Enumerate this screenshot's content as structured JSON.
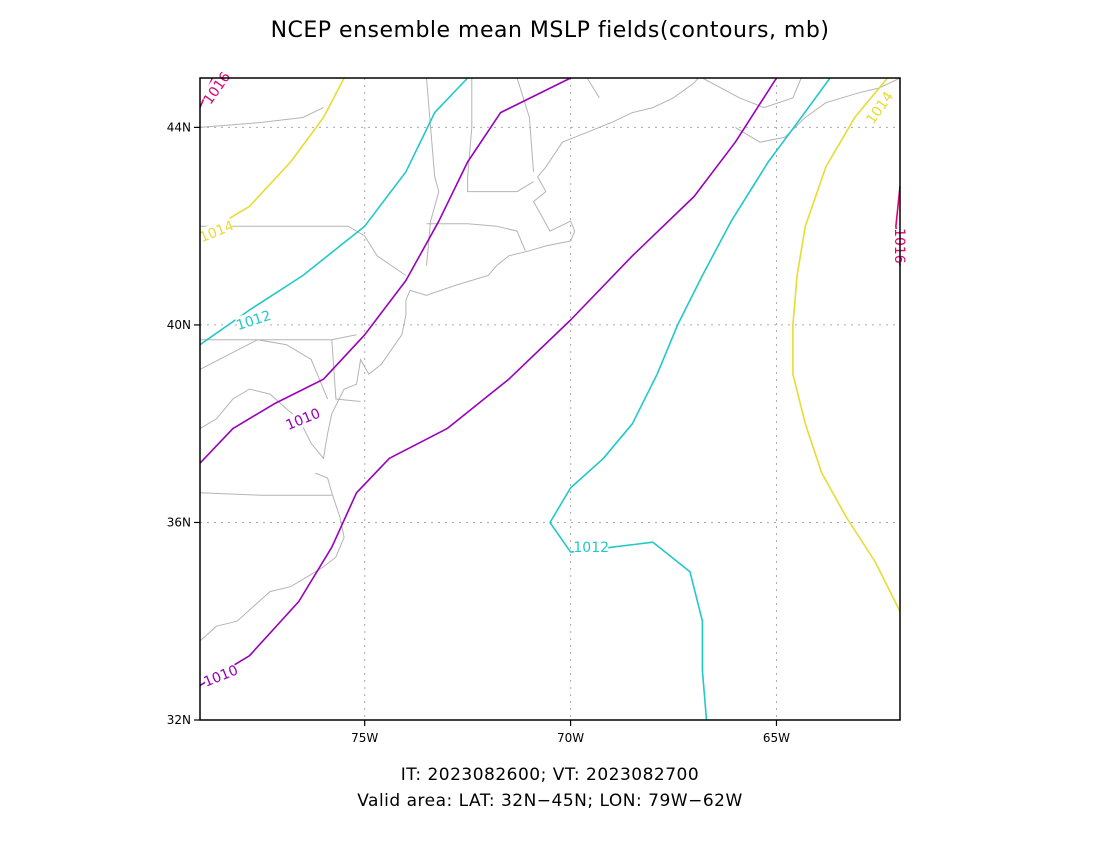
{
  "title": "NCEP ensemble mean MSLP fields(contours, mb)",
  "footer": {
    "line1": "IT: 2023082600; VT: 2023082700",
    "line2": "Valid area: LAT: 32N−45N; LON: 79W−62W"
  },
  "map": {
    "lat_range": [
      32,
      45
    ],
    "lon_range": [
      -79,
      -62
    ],
    "gridlines": "dotted",
    "lat_ticks": [
      {
        "lat": 32,
        "label": "32N"
      },
      {
        "lat": 36,
        "label": "36N"
      },
      {
        "lat": 40,
        "label": "40N"
      },
      {
        "lat": 44,
        "label": "44N"
      }
    ],
    "lon_ticks": [
      {
        "lon": -75,
        "label": "75W"
      },
      {
        "lon": -70,
        "label": "70W"
      },
      {
        "lon": -65,
        "label": "65W"
      }
    ],
    "colors": {
      "c1010": "#9900bb",
      "c1012": "#22c8c8",
      "c1014": "#e6dc32",
      "c1016": "#dd0077",
      "coast": "#b4b4b4",
      "grid": "#aaaaaa"
    }
  },
  "contours": [
    {
      "value": "1010",
      "color": "#9900bb",
      "points": [
        [
          -79,
          37.2
        ],
        [
          -78.2,
          37.9
        ],
        [
          -77.2,
          38.4
        ],
        [
          -76.0,
          38.9
        ],
        [
          -75.0,
          39.8
        ],
        [
          -74.0,
          40.9
        ],
        [
          -73.2,
          42.1
        ],
        [
          -72.5,
          43.3
        ],
        [
          -71.7,
          44.3
        ],
        [
          -70.0,
          45.0
        ]
      ]
    },
    {
      "value": "1010",
      "color": "#9900bb",
      "points": [
        [
          -79,
          32.7
        ],
        [
          -77.8,
          33.3
        ],
        [
          -76.6,
          34.4
        ],
        [
          -75.8,
          35.5
        ],
        [
          -75.2,
          36.6
        ],
        [
          -74.4,
          37.3
        ],
        [
          -73.0,
          37.9
        ],
        [
          -71.5,
          38.9
        ],
        [
          -70.0,
          40.1
        ],
        [
          -68.5,
          41.4
        ],
        [
          -67.0,
          42.6
        ],
        [
          -66.0,
          43.7
        ],
        [
          -65.0,
          45.0
        ]
      ]
    },
    {
      "value": "1012",
      "color": "#22c8c8",
      "points": [
        [
          -79,
          39.6
        ],
        [
          -77.8,
          40.3
        ],
        [
          -76.5,
          41.0
        ],
        [
          -75.0,
          42.0
        ],
        [
          -74.0,
          43.1
        ],
        [
          -73.3,
          44.3
        ],
        [
          -72.5,
          45.0
        ]
      ]
    },
    {
      "value": "1012",
      "color": "#22c8c8",
      "points": [
        [
          -66.7,
          32.0
        ],
        [
          -66.8,
          33.0
        ],
        [
          -66.8,
          34.0
        ],
        [
          -67.1,
          35.0
        ],
        [
          -68.0,
          35.6
        ],
        [
          -69.0,
          35.5
        ],
        [
          -70.0,
          35.4
        ],
        [
          -70.5,
          36.0
        ],
        [
          -70.0,
          36.7
        ],
        [
          -69.2,
          37.3
        ],
        [
          -68.5,
          38.0
        ],
        [
          -67.9,
          39.0
        ],
        [
          -67.4,
          40.0
        ],
        [
          -66.8,
          41.0
        ],
        [
          -66.1,
          42.1
        ],
        [
          -65.2,
          43.3
        ],
        [
          -64.4,
          44.2
        ],
        [
          -63.7,
          45.0
        ]
      ]
    },
    {
      "value": "1014",
      "color": "#e6dc32",
      "points": [
        [
          -79,
          41.8
        ],
        [
          -77.8,
          42.4
        ],
        [
          -76.8,
          43.3
        ],
        [
          -76.0,
          44.2
        ],
        [
          -75.5,
          45.0
        ]
      ]
    },
    {
      "value": "1014",
      "color": "#e6dc32",
      "points": [
        [
          -62.0,
          34.2
        ],
        [
          -62.6,
          35.2
        ],
        [
          -63.3,
          36.1
        ],
        [
          -63.9,
          37.0
        ],
        [
          -64.3,
          38.0
        ],
        [
          -64.6,
          39.0
        ],
        [
          -64.6,
          40.0
        ],
        [
          -64.5,
          41.0
        ],
        [
          -64.3,
          42.0
        ],
        [
          -63.8,
          43.2
        ],
        [
          -63.1,
          44.2
        ],
        [
          -62.3,
          45.0
        ]
      ]
    },
    {
      "value": "1016",
      "color": "#dd0077",
      "points": [
        [
          -79.0,
          44.4
        ],
        [
          -78.7,
          45.0
        ]
      ]
    },
    {
      "value": "1016",
      "color": "#dd0077",
      "points": [
        [
          -62.0,
          42.8
        ],
        [
          -62.1,
          42.0
        ],
        [
          -62.0,
          41.2
        ]
      ]
    }
  ],
  "contour_labels": [
    {
      "text": "1010",
      "color": "#9900bb",
      "lon": -76.5,
      "lat": 38.1,
      "angle": -22
    },
    {
      "text": "1010",
      "color": "#9900bb",
      "lon": -78.5,
      "lat": 32.9,
      "angle": -22
    },
    {
      "text": "1012",
      "color": "#22c8c8",
      "lon": -77.7,
      "lat": 40.1,
      "angle": -18
    },
    {
      "text": "1012",
      "color": "#22c8c8",
      "lon": -69.5,
      "lat": 35.5,
      "angle": 0
    },
    {
      "text": "1014",
      "color": "#e6dc32",
      "lon": -78.6,
      "lat": 41.9,
      "angle": -22
    },
    {
      "text": "1014",
      "color": "#e6dc32",
      "lon": -62.5,
      "lat": 44.4,
      "angle": -55
    },
    {
      "text": "1016",
      "color": "#dd0077",
      "lon": -78.6,
      "lat": 44.8,
      "angle": -55
    },
    {
      "text": "1016",
      "color": "#dd0077",
      "lon": -62.0,
      "lat": 41.6,
      "angle": 90
    }
  ],
  "coastlines": [
    [
      [
        -79.0,
        37.9
      ],
      [
        -78.6,
        38.1
      ],
      [
        -78.2,
        38.5
      ],
      [
        -77.8,
        38.7
      ],
      [
        -77.3,
        38.6
      ],
      [
        -76.9,
        38.3
      ],
      [
        -76.6,
        38.1
      ],
      [
        -76.3,
        37.6
      ],
      [
        -76.0,
        37.3
      ],
      [
        -75.9,
        37.8
      ],
      [
        -75.8,
        38.2
      ],
      [
        -75.5,
        38.7
      ],
      [
        -75.2,
        38.8
      ],
      [
        -75.1,
        39.3
      ],
      [
        -74.9,
        39.0
      ],
      [
        -74.6,
        39.2
      ],
      [
        -74.1,
        39.8
      ],
      [
        -74.0,
        40.2
      ],
      [
        -74.0,
        40.5
      ],
      [
        -73.9,
        40.7
      ],
      [
        -73.5,
        40.6
      ],
      [
        -72.8,
        40.8
      ],
      [
        -72.0,
        41.0
      ],
      [
        -71.8,
        41.2
      ],
      [
        -71.5,
        41.4
      ],
      [
        -71.0,
        41.5
      ],
      [
        -70.6,
        41.6
      ],
      [
        -70.0,
        41.7
      ],
      [
        -69.9,
        41.9
      ],
      [
        -70.0,
        42.1
      ],
      [
        -70.5,
        41.9
      ],
      [
        -70.7,
        42.2
      ],
      [
        -70.9,
        42.5
      ],
      [
        -70.6,
        42.7
      ],
      [
        -70.8,
        43.0
      ],
      [
        -70.6,
        43.2
      ],
      [
        -70.2,
        43.7
      ],
      [
        -69.6,
        43.9
      ],
      [
        -69.0,
        44.1
      ],
      [
        -68.5,
        44.3
      ],
      [
        -68.0,
        44.4
      ],
      [
        -67.5,
        44.6
      ],
      [
        -67.0,
        44.9
      ],
      [
        -66.9,
        45.0
      ]
    ],
    [
      [
        -79.0,
        33.6
      ],
      [
        -78.6,
        33.9
      ],
      [
        -78.1,
        34.0
      ],
      [
        -77.7,
        34.3
      ],
      [
        -77.3,
        34.6
      ],
      [
        -76.8,
        34.7
      ],
      [
        -76.4,
        34.9
      ],
      [
        -76.0,
        35.1
      ],
      [
        -75.7,
        35.3
      ],
      [
        -75.5,
        35.7
      ],
      [
        -75.6,
        36.1
      ],
      [
        -75.8,
        36.6
      ],
      [
        -75.9,
        36.9
      ],
      [
        -76.2,
        37.0
      ]
    ],
    [
      [
        -79.0,
        39.1
      ],
      [
        -78.3,
        39.4
      ],
      [
        -77.6,
        39.7
      ],
      [
        -76.9,
        39.6
      ],
      [
        -76.3,
        39.3
      ],
      [
        -76.1,
        38.9
      ],
      [
        -75.9,
        38.5
      ]
    ],
    [
      [
        -66.8,
        45.0
      ],
      [
        -65.9,
        44.6
      ],
      [
        -65.3,
        44.4
      ],
      [
        -64.6,
        44.6
      ],
      [
        -64.4,
        45.0
      ]
    ],
    [
      [
        -66.0,
        44.0
      ],
      [
        -65.4,
        43.7
      ],
      [
        -64.8,
        43.8
      ],
      [
        -64.3,
        44.2
      ],
      [
        -63.8,
        44.5
      ],
      [
        -63.0,
        44.7
      ],
      [
        -62.5,
        44.8
      ],
      [
        -62.0,
        45.0
      ]
    ]
  ],
  "borders": [
    [
      [
        -79.0,
        36.6
      ],
      [
        -77.5,
        36.55
      ],
      [
        -75.8,
        36.55
      ]
    ],
    [
      [
        -79.0,
        39.7
      ],
      [
        -75.8,
        39.7
      ],
      [
        -75.2,
        39.8
      ]
    ],
    [
      [
        -79.0,
        42.0
      ],
      [
        -75.4,
        42.0
      ],
      [
        -75.0,
        41.8
      ],
      [
        -74.7,
        41.4
      ],
      [
        -74.0,
        41.0
      ]
    ],
    [
      [
        -73.5,
        45.0
      ],
      [
        -73.4,
        44.0
      ],
      [
        -73.3,
        43.0
      ],
      [
        -73.2,
        42.7
      ],
      [
        -73.4,
        42.1
      ],
      [
        -73.5,
        41.2
      ]
    ],
    [
      [
        -73.5,
        42.05
      ],
      [
        -72.5,
        42.05
      ],
      [
        -71.8,
        42.0
      ],
      [
        -71.3,
        41.9
      ],
      [
        -71.1,
        41.5
      ]
    ],
    [
      [
        -72.4,
        45.0
      ],
      [
        -72.4,
        44.0
      ],
      [
        -72.5,
        43.0
      ],
      [
        -72.5,
        42.7
      ],
      [
        -71.3,
        42.7
      ],
      [
        -70.9,
        42.9
      ]
    ],
    [
      [
        -71.3,
        45.0
      ],
      [
        -71.0,
        44.2
      ],
      [
        -70.9,
        43.1
      ]
    ],
    [
      [
        -69.6,
        45.0
      ],
      [
        -69.3,
        44.6
      ]
    ],
    [
      [
        -75.8,
        39.7
      ],
      [
        -75.7,
        38.5
      ],
      [
        -75.1,
        38.45
      ]
    ],
    [
      [
        -79.0,
        44.0
      ],
      [
        -77.5,
        44.1
      ],
      [
        -76.5,
        44.2
      ],
      [
        -76.0,
        44.4
      ]
    ]
  ]
}
